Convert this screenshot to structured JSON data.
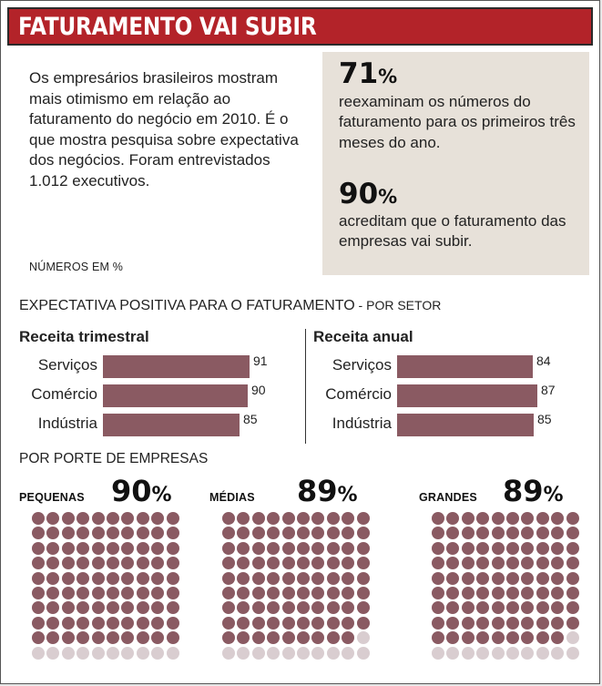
{
  "header": {
    "title": "FATURAMENTO VAI SUBIR"
  },
  "intro": {
    "text": "Os empresários brasileiros mostram mais otimismo em relação ao faturamento do negócio em 2010. É o que mostra pesquisa sobre expectativa dos negócios. Foram entrevistados 1.012 executivos."
  },
  "note": "NÚMEROS EM %",
  "highlights": [
    {
      "value": "71",
      "unit": "%",
      "text": "reexaminam os números do faturamento para os primeiros três meses do ano."
    },
    {
      "value": "90",
      "unit": "%",
      "text": "acreditam que o faturamento das empresas vai subir."
    }
  ],
  "colors": {
    "accent": "#b32329",
    "bar": "#8a5a62",
    "dot_off": "#d9cdd0",
    "panel": "#e7e1d9"
  },
  "section_sector": {
    "title": "EXPECTATIVA POSITIVA PARA O FATURAMENTO",
    "subtitle": " - POR SETOR"
  },
  "section_size": {
    "title": "POR PORTE DE EMPRESAS"
  },
  "chart_data": [
    {
      "type": "bar",
      "orientation": "horizontal",
      "title": "Receita trimestral",
      "categories": [
        "Serviços",
        "Comércio",
        "Indústria"
      ],
      "values": [
        91,
        90,
        85
      ],
      "units": "%"
    },
    {
      "type": "bar",
      "orientation": "horizontal",
      "title": "Receita anual",
      "categories": [
        "Serviços",
        "Comércio",
        "Indústria"
      ],
      "values": [
        84,
        87,
        85
      ],
      "units": "%"
    },
    {
      "type": "waffle",
      "title": "POR PORTE DE EMPRESAS",
      "grid": [
        10,
        10
      ],
      "groups": [
        {
          "label": "PEQUENAS",
          "value": 90
        },
        {
          "label": "MÉDIAS",
          "value": 89
        },
        {
          "label": "GRANDES",
          "value": 89
        }
      ],
      "units": "%"
    }
  ]
}
